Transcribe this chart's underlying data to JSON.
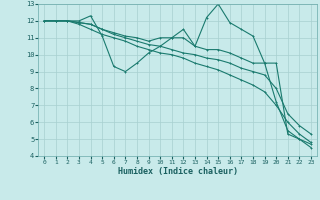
{
  "xlabel": "Humidex (Indice chaleur)",
  "ylabel": "",
  "bg_color": "#c8eaea",
  "grid_color": "#a8d0d0",
  "line_color": "#1a7a6e",
  "xlim": [
    -0.5,
    23.5
  ],
  "ylim": [
    4,
    13
  ],
  "xticks": [
    0,
    1,
    2,
    3,
    4,
    5,
    6,
    7,
    8,
    9,
    10,
    11,
    12,
    13,
    14,
    15,
    16,
    17,
    18,
    19,
    20,
    21,
    22,
    23
  ],
  "yticks": [
    4,
    5,
    6,
    7,
    8,
    9,
    10,
    11,
    12,
    13
  ],
  "line1_x": [
    0,
    1,
    2,
    3,
    4,
    5,
    6,
    7,
    8,
    9,
    10,
    11,
    12,
    13,
    14,
    15,
    16,
    17,
    18,
    19,
    20,
    21,
    22,
    23
  ],
  "line1_y": [
    12,
    12,
    12,
    12,
    12.3,
    11.1,
    9.3,
    9.0,
    9.5,
    10.1,
    10.5,
    11.0,
    11.5,
    10.5,
    12.2,
    13.0,
    11.9,
    11.5,
    11.1,
    9.5,
    9.5,
    5.3,
    5.0,
    4.5
  ],
  "line2_x": [
    0,
    1,
    2,
    3,
    4,
    5,
    6,
    7,
    8,
    9,
    10,
    11,
    12,
    13,
    14,
    15,
    16,
    17,
    18,
    19,
    20,
    21,
    22,
    23
  ],
  "line2_y": [
    12,
    12,
    12,
    11.9,
    11.8,
    11.5,
    11.3,
    11.1,
    11.0,
    10.8,
    11.0,
    11.0,
    11.0,
    10.5,
    10.3,
    10.3,
    10.1,
    9.8,
    9.5,
    9.5,
    7.2,
    5.5,
    5.0,
    4.7
  ],
  "line3_x": [
    0,
    1,
    2,
    3,
    4,
    5,
    6,
    7,
    8,
    9,
    10,
    11,
    12,
    13,
    14,
    15,
    16,
    17,
    18,
    19,
    20,
    21,
    22,
    23
  ],
  "line3_y": [
    12,
    12,
    12,
    11.9,
    11.8,
    11.5,
    11.2,
    11.0,
    10.8,
    10.6,
    10.5,
    10.3,
    10.1,
    10.0,
    9.8,
    9.7,
    9.5,
    9.2,
    9.0,
    8.8,
    8.0,
    6.5,
    5.8,
    5.3
  ],
  "line4_x": [
    0,
    1,
    2,
    3,
    4,
    5,
    6,
    7,
    8,
    9,
    10,
    11,
    12,
    13,
    14,
    15,
    16,
    17,
    18,
    19,
    20,
    21,
    22,
    23
  ],
  "line4_y": [
    12,
    12,
    12,
    11.8,
    11.5,
    11.2,
    11.0,
    10.8,
    10.5,
    10.3,
    10.1,
    10.0,
    9.8,
    9.5,
    9.3,
    9.1,
    8.8,
    8.5,
    8.2,
    7.8,
    7.0,
    6.0,
    5.3,
    4.8
  ]
}
